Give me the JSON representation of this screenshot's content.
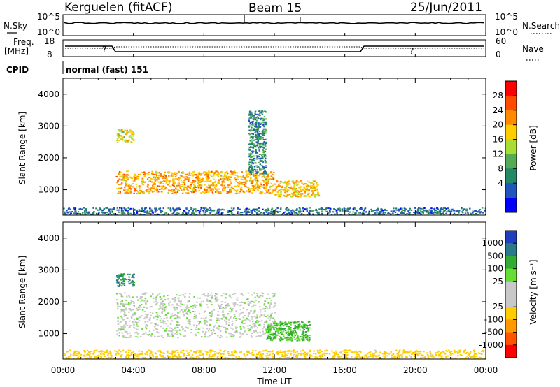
{
  "header": {
    "station": "Kerguelen (fitACF)",
    "beam": "Beam 15",
    "date": "25/Jun/2011"
  },
  "strips": {
    "nsky_label": "N.Sky",
    "nsearch_label": "N.Search",
    "noise_ticks_left": [
      "10^5",
      "10^0"
    ],
    "noise_ticks_right": [
      "10^5",
      "10^0"
    ],
    "freq_label_1": "Freq.",
    "freq_label_2": "[MHz]",
    "freq_ticks": [
      "18",
      "8"
    ],
    "nave_label": "Nave",
    "nave_ticks": [
      "60",
      "0"
    ],
    "cpid_label": "CPID",
    "cpid_value": "normal (fast) 151",
    "q1": "?",
    "q2": "?"
  },
  "xaxis": {
    "label": "Time UT",
    "ticks": [
      "00:00",
      "04:00",
      "08:00",
      "12:00",
      "16:00",
      "20:00",
      "00:00"
    ]
  },
  "power_colorbar": {
    "label": "Power [dB]",
    "ticks": [
      "28",
      "24",
      "20",
      "16",
      "12",
      "8",
      "4"
    ],
    "colors": [
      "#ff0000",
      "#ff4a00",
      "#ff8a00",
      "#ffcc00",
      "#aadd33",
      "#55aa55",
      "#228866",
      "#2255bb",
      "#0000ff"
    ]
  },
  "velocity_colorbar": {
    "label": "Velocity [m s⁻¹]",
    "ticks": [
      "1000",
      "500",
      "100",
      "25",
      "-25",
      "-100",
      "-500",
      "-1000"
    ],
    "colors": [
      "#1f3fbf",
      "#2a7a8a",
      "#33aa33",
      "#66dd33",
      "#c8c8c8",
      "#c8c8c8",
      "#ffcc00",
      "#ff9900",
      "#ff5500",
      "#ff0000"
    ]
  },
  "chart_data": [
    {
      "type": "heatmap",
      "title": "Beam 15",
      "quantity": "Power",
      "xlabel": "Time UT",
      "ylabel": "Slant Range [km]",
      "xlim": [
        "00:00",
        "24:00"
      ],
      "ylim": [
        200,
        4500
      ],
      "yticks": [
        1000,
        2000,
        3000,
        4000
      ],
      "colorbar_range_dB": [
        0,
        32
      ],
      "echo_regions": [
        {
          "time_start_h": 3.0,
          "time_end_h": 12.0,
          "range_start_km": 900,
          "range_end_km": 1600,
          "power_dB": 22
        },
        {
          "time_start_h": 3.0,
          "time_end_h": 4.0,
          "range_start_km": 2500,
          "range_end_km": 2900,
          "power_dB": 18
        },
        {
          "time_start_h": 12.0,
          "time_end_h": 14.5,
          "range_start_km": 800,
          "range_end_km": 1300,
          "power_dB": 20
        },
        {
          "time_start_h": 10.5,
          "time_end_h": 11.5,
          "range_start_km": 1500,
          "range_end_km": 3500,
          "power_dB": 8
        },
        {
          "time_start_h": 0.0,
          "time_end_h": 24.0,
          "range_start_km": 200,
          "range_end_km": 450,
          "power_dB": 6
        }
      ]
    },
    {
      "type": "heatmap",
      "quantity": "Velocity",
      "xlabel": "Time UT",
      "ylabel": "Slant Range [km]",
      "xlim": [
        "00:00",
        "24:00"
      ],
      "ylim": [
        200,
        4500
      ],
      "yticks": [
        1000,
        2000,
        3000,
        4000
      ],
      "colorbar_levels_m_s": [
        1000,
        500,
        100,
        25,
        -25,
        -100,
        -500,
        -1000
      ],
      "echo_regions": [
        {
          "time_start_h": 3.0,
          "time_end_h": 12.0,
          "range_start_km": 900,
          "range_end_km": 2300,
          "velocity_m_s": 0
        },
        {
          "time_start_h": 11.5,
          "time_end_h": 14.0,
          "range_start_km": 800,
          "range_end_km": 1400,
          "velocity_m_s": 80
        },
        {
          "time_start_h": 3.0,
          "time_end_h": 4.0,
          "range_start_km": 2500,
          "range_end_km": 2900,
          "velocity_m_s": 300
        },
        {
          "time_start_h": 0.0,
          "time_end_h": 24.0,
          "range_start_km": 200,
          "range_end_km": 500,
          "velocity_m_s": -150
        }
      ]
    }
  ]
}
